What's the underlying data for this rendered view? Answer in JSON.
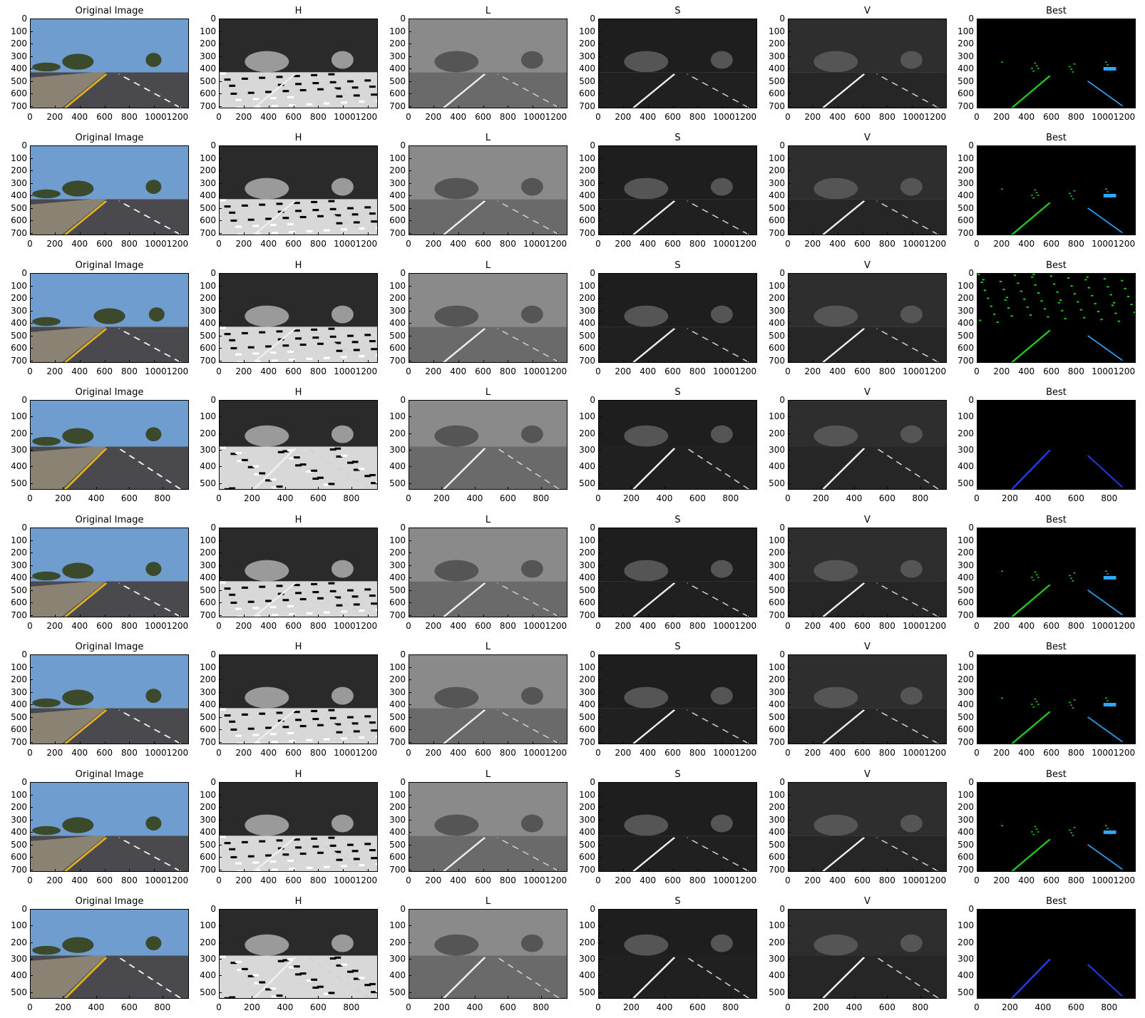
{
  "column_titles": [
    "Original Image",
    "H",
    "L",
    "S",
    "V",
    "Best"
  ],
  "rows": [
    {
      "image": "row1",
      "height": 720,
      "width": 1280,
      "y_ticks": [
        "0",
        "100",
        "200",
        "300",
        "400",
        "500",
        "600",
        "700"
      ],
      "x_ticks": [
        "0",
        "200",
        "400",
        "600",
        "800",
        "1000",
        "1200"
      ],
      "x_ticks_text": [
        "0",
        "200",
        "400",
        "600",
        "800",
        "10001200"
      ]
    },
    {
      "image": "row2",
      "height": 720,
      "width": 1280,
      "y_ticks": [
        "0",
        "100",
        "200",
        "300",
        "400",
        "500",
        "600",
        "700"
      ],
      "x_ticks": [
        "0",
        "200",
        "400",
        "600",
        "800",
        "1000",
        "1200"
      ],
      "x_ticks_text": [
        "0",
        "200",
        "400",
        "600",
        "800",
        "10001200"
      ]
    },
    {
      "image": "row3",
      "height": 720,
      "width": 1280,
      "y_ticks": [
        "0",
        "100",
        "200",
        "300",
        "400",
        "500",
        "600",
        "700"
      ],
      "x_ticks": [
        "0",
        "200",
        "400",
        "600",
        "800",
        "1000",
        "1200"
      ],
      "x_ticks_text": [
        "0",
        "200",
        "400",
        "600",
        "800",
        "10001200"
      ]
    },
    {
      "image": "row4",
      "height": 540,
      "width": 960,
      "y_ticks": [
        "0",
        "100",
        "200",
        "300",
        "400",
        "500"
      ],
      "x_ticks": [
        "0",
        "200",
        "400",
        "600",
        "800"
      ],
      "x_ticks_text": [
        "0",
        "200",
        "400",
        "600",
        "800"
      ]
    },
    {
      "image": "row5",
      "height": 720,
      "width": 1280,
      "y_ticks": [
        "0",
        "100",
        "200",
        "300",
        "400",
        "500",
        "600",
        "700"
      ],
      "x_ticks": [
        "0",
        "200",
        "400",
        "600",
        "800",
        "1000",
        "1200"
      ],
      "x_ticks_text": [
        "0",
        "200",
        "400",
        "600",
        "800",
        "10001200"
      ]
    },
    {
      "image": "row6",
      "height": 720,
      "width": 1280,
      "y_ticks": [
        "0",
        "100",
        "200",
        "300",
        "400",
        "500",
        "600",
        "700"
      ],
      "x_ticks": [
        "0",
        "200",
        "400",
        "600",
        "800",
        "1000",
        "1200"
      ],
      "x_ticks_text": [
        "0",
        "200",
        "400",
        "600",
        "800",
        "10001200"
      ]
    },
    {
      "image": "row7",
      "height": 720,
      "width": 1280,
      "y_ticks": [
        "0",
        "100",
        "200",
        "300",
        "400",
        "500",
        "600",
        "700"
      ],
      "x_ticks": [
        "0",
        "200",
        "400",
        "600",
        "800",
        "1000",
        "1200"
      ],
      "x_ticks_text": [
        "0",
        "200",
        "400",
        "600",
        "800",
        "10001200"
      ]
    },
    {
      "image": "row8",
      "height": 540,
      "width": 960,
      "y_ticks": [
        "0",
        "100",
        "200",
        "300",
        "400",
        "500"
      ],
      "x_ticks": [
        "0",
        "200",
        "400",
        "600",
        "800"
      ],
      "x_ticks_text": [
        "0",
        "200",
        "400",
        "600",
        "800"
      ]
    }
  ],
  "colors": {
    "sky": "#6f9dd0",
    "tree": "#3c4a2c",
    "road": "#4a4a4e",
    "yellow_line": "#e3b020",
    "white_line": "#f2f2f2",
    "best_green": "#1fd21f",
    "best_blue": "#1f3fff",
    "best_cyan": "#2fa8ff"
  }
}
